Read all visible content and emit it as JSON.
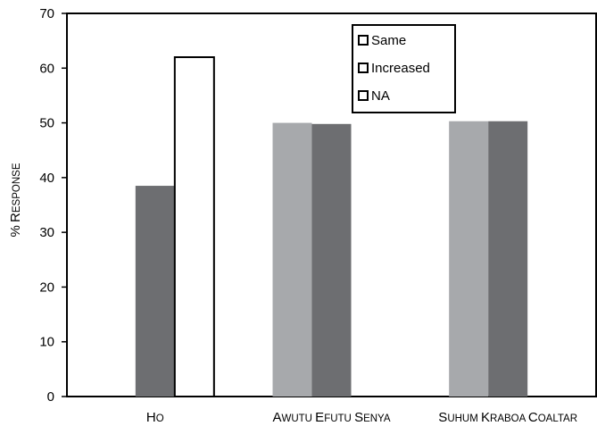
{
  "chart_data": {
    "type": "bar",
    "ylabel": "% Response",
    "ylim": [
      0,
      70
    ],
    "yticks": [
      0,
      10,
      20,
      30,
      40,
      50,
      60,
      70
    ],
    "categories": [
      "Ho",
      "Awutu Efutu Senya",
      "Suhum Kraboa Coaltar"
    ],
    "series": [
      {
        "name": "Same",
        "values": [
          0,
          50,
          50.3
        ],
        "color": "#a7a9ac"
      },
      {
        "name": "Increased",
        "values": [
          38.5,
          49.8,
          50.3
        ],
        "color": "#6d6e71"
      },
      {
        "name": "NA",
        "values": [
          62,
          0,
          0
        ],
        "color": "#ffffff"
      }
    ],
    "legend_position": "top-right",
    "grid": false
  }
}
